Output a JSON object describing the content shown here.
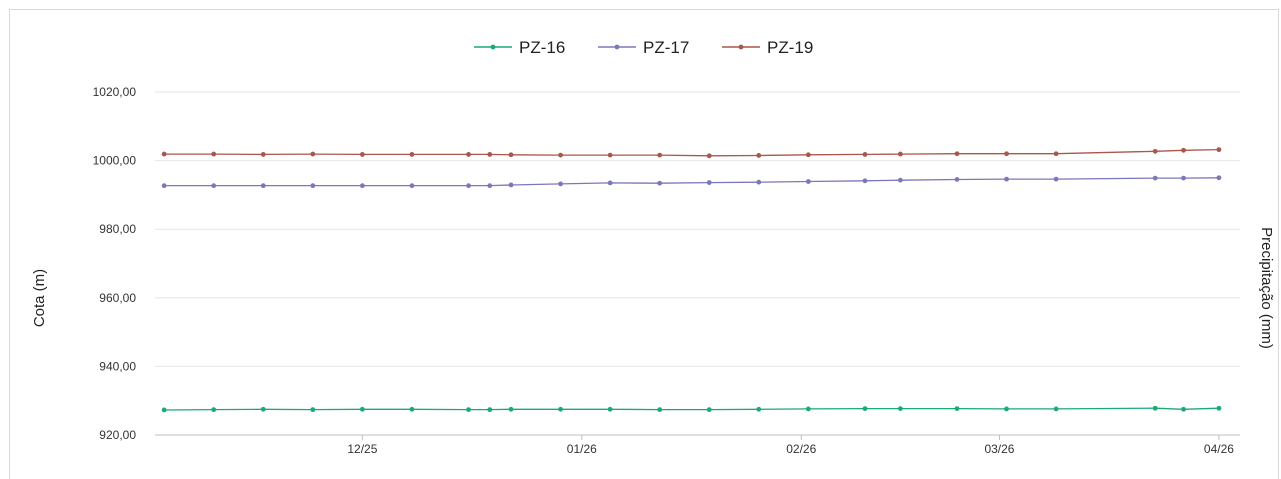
{
  "chart_data": {
    "type": "line",
    "title": "",
    "ylabel": "Cota (m)",
    "ylabel_right": "Precipitação (mm)",
    "ylim": [
      920,
      1025
    ],
    "yticks": [
      920,
      940,
      960,
      980,
      1000,
      1020
    ],
    "ytick_labels": [
      "920,00",
      "940,00",
      "960,00",
      "980,00",
      "1000,00",
      "1020,00"
    ],
    "x_range": [
      "2025-11-01",
      "2026-04-02"
    ],
    "xticks": [
      "2025-12-01",
      "2026-01-01",
      "2026-02-01",
      "2026-03-01",
      "2026-04-01"
    ],
    "xtick_labels": [
      "12/25",
      "01/26",
      "02/26",
      "03/26",
      "04/26"
    ],
    "grid": "horizontal",
    "legend_position": "top-center",
    "x": [
      "2025-11-03",
      "2025-11-10",
      "2025-11-17",
      "2025-11-24",
      "2025-12-01",
      "2025-12-08",
      "2025-12-16",
      "2025-12-19",
      "2025-12-22",
      "2025-12-29",
      "2026-01-05",
      "2026-01-12",
      "2026-01-19",
      "2026-01-26",
      "2026-02-02",
      "2026-02-10",
      "2026-02-15",
      "2026-02-23",
      "2026-03-02",
      "2026-03-09",
      "2026-03-23",
      "2026-03-27",
      "2026-04-01"
    ],
    "series": [
      {
        "name": "PZ-16",
        "color": "#1aaa73",
        "values": [
          927.3,
          927.4,
          927.5,
          927.4,
          927.5,
          927.5,
          927.4,
          927.4,
          927.5,
          927.5,
          927.5,
          927.4,
          927.4,
          927.5,
          927.6,
          927.7,
          927.7,
          927.7,
          927.6,
          927.6,
          927.8,
          927.5,
          927.8
        ]
      },
      {
        "name": "PZ-17",
        "color": "#7b78b8",
        "values": [
          992.7,
          992.7,
          992.7,
          992.7,
          992.7,
          992.7,
          992.7,
          992.7,
          992.9,
          993.2,
          993.5,
          993.4,
          993.6,
          993.7,
          993.9,
          994.1,
          994.3,
          994.5,
          994.6,
          994.6,
          994.9,
          994.9,
          995.0
        ]
      },
      {
        "name": "PZ-19",
        "color": "#a8574a",
        "values": [
          1001.9,
          1001.9,
          1001.8,
          1001.9,
          1001.8,
          1001.8,
          1001.8,
          1001.8,
          1001.7,
          1001.6,
          1001.6,
          1001.6,
          1001.4,
          1001.5,
          1001.7,
          1001.8,
          1001.9,
          1002.0,
          1002.0,
          1002.0,
          1002.7,
          1003.0,
          1003.2
        ]
      }
    ]
  }
}
